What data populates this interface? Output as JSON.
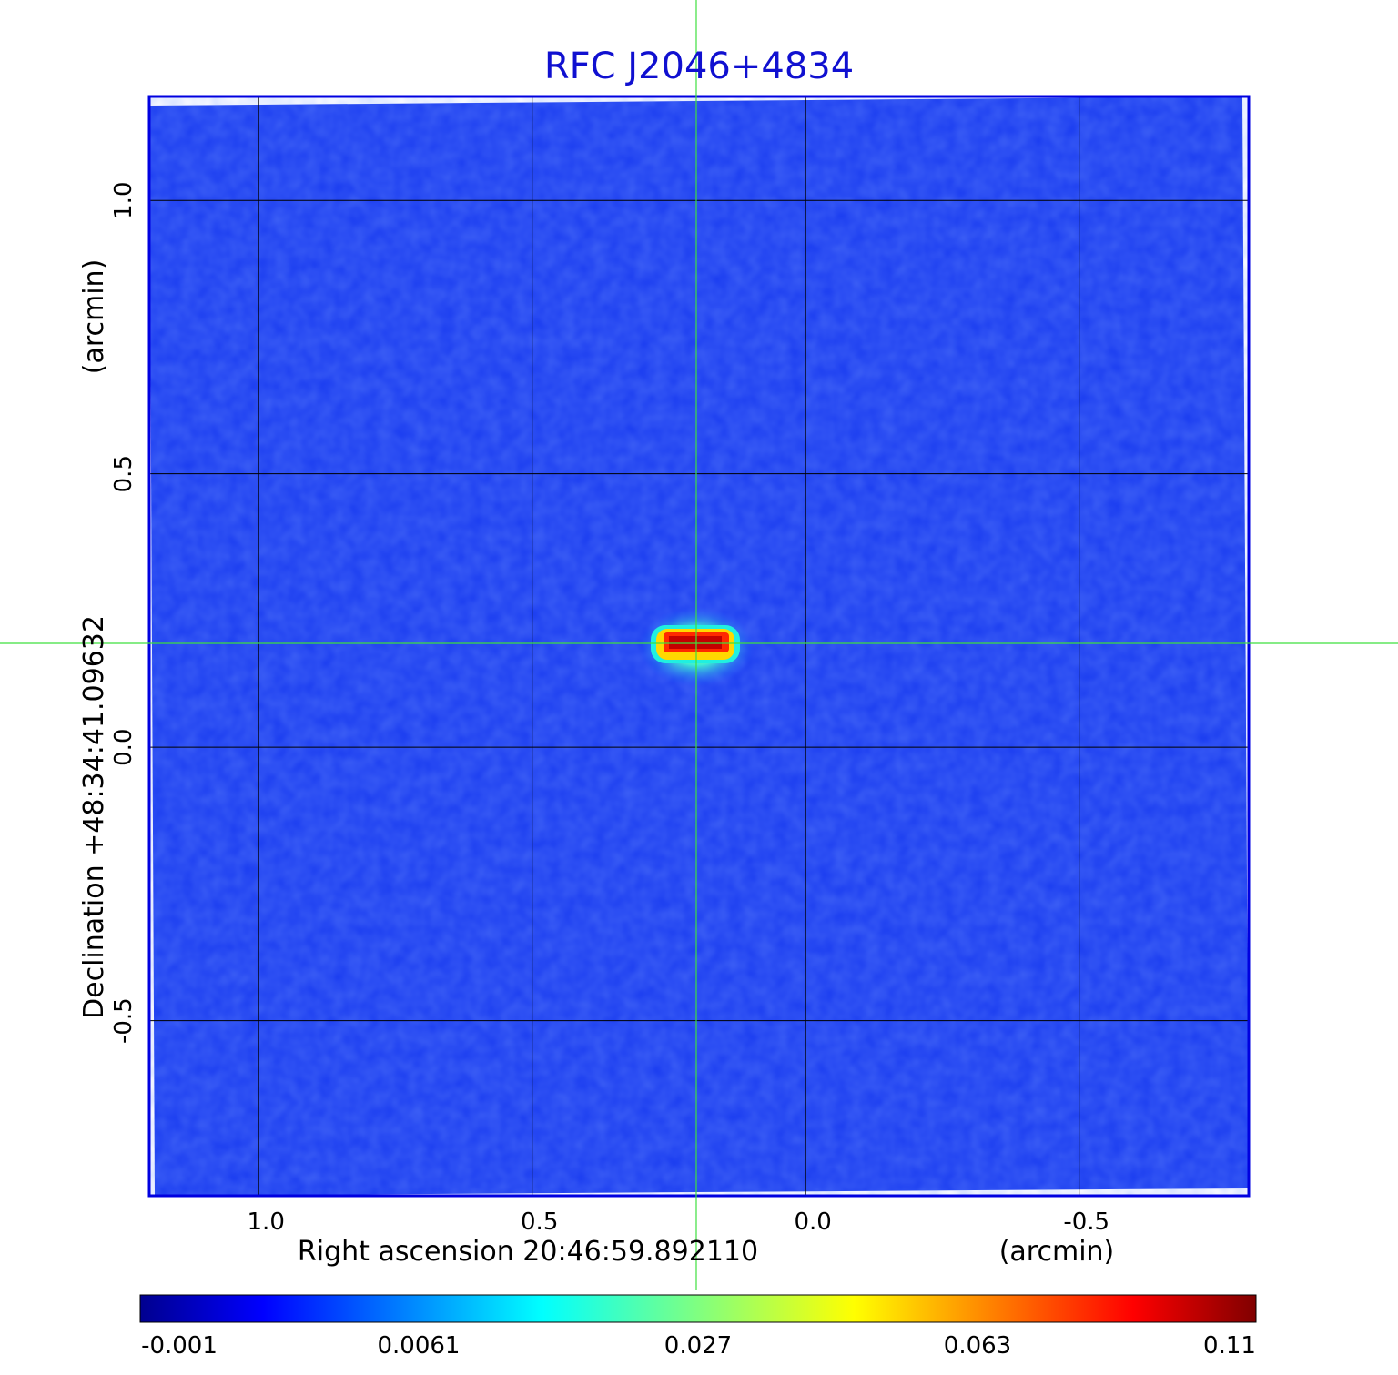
{
  "chart_data": {
    "type": "heatmap",
    "title": "RFC J2046+4834",
    "xlabel": "Right ascension  20:46:59.892110",
    "xunit": "(arcmin)",
    "ylabel": "Declination  +48:34:41.09632",
    "yunit": "(arcmin)",
    "xlim": [
      1.2,
      -0.81
    ],
    "ylim": [
      -0.82,
      1.19
    ],
    "xticks": [
      {
        "value": 1.0,
        "label": "1.0"
      },
      {
        "value": 0.5,
        "label": "0.5"
      },
      {
        "value": 0.0,
        "label": "0.0"
      },
      {
        "value": -0.5,
        "label": "-0.5"
      }
    ],
    "yticks": [
      {
        "value": 1.0,
        "label": "1.0"
      },
      {
        "value": 0.5,
        "label": "0.5"
      },
      {
        "value": 0.0,
        "label": "0.0"
      },
      {
        "value": -0.5,
        "label": "-0.5"
      }
    ],
    "grid": true,
    "crosshair": {
      "x": 0.2,
      "y": 0.19
    },
    "source_peak": {
      "x": 0.2,
      "y": 0.19,
      "value": 0.11
    },
    "colorbar": {
      "colormap": "jet",
      "ticks": [
        {
          "value": -0.001,
          "label": "-0.001"
        },
        {
          "value": 0.0061,
          "label": "0.0061"
        },
        {
          "value": 0.027,
          "label": "0.027"
        },
        {
          "value": 0.063,
          "label": "0.063"
        },
        {
          "value": 0.11,
          "label": "0.11"
        }
      ]
    }
  },
  "colors": {
    "title": "#1010d0",
    "background_field": "#1a3cf0",
    "frame": "#0000e0",
    "grid": "#000000",
    "crosshair": "#3de03d"
  }
}
